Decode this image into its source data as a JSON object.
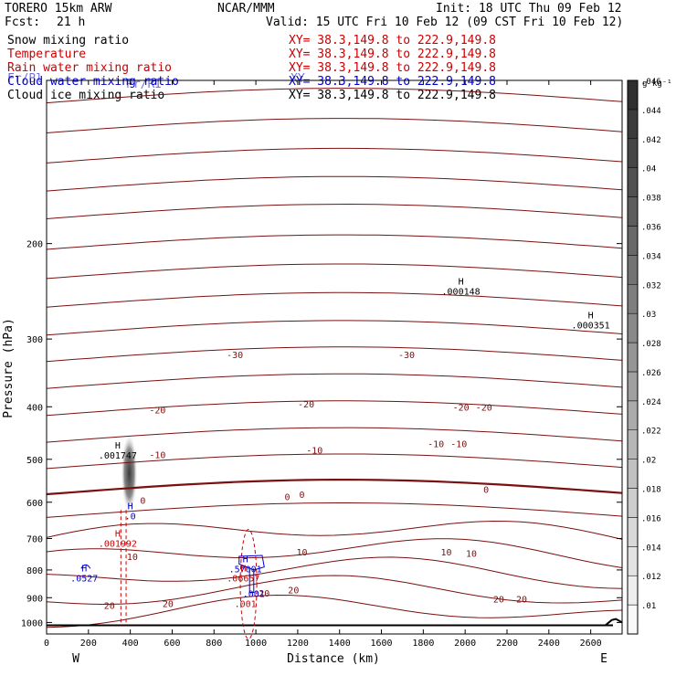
{
  "header": {
    "model": "TORERO 15km ARW",
    "agency": "NCAR/MMM",
    "init": "Init: 18 UTC Thu 09 Feb 12",
    "fcst_label": "Fcst:",
    "fcst_value": "21 h",
    "valid": "Valid: 15 UTC Fri 10 Feb 12 (09 CST Fri 10 Feb 12)",
    "overlap_ghost_a": "Fr/Bl",
    "overlap_ghost_b": "Pr/RI",
    "overlap_ghost_c": "XY"
  },
  "fields": [
    {
      "name": "Snow mixing ratio",
      "xy": "XY=  38.3,149.8 to 222.9,149.8",
      "color": "#000000",
      "xy_color": "#cc0000"
    },
    {
      "name": "Temperature",
      "xy": "XY=  38.3,149.8 to 222.9,149.8",
      "color": "#cc0000",
      "xy_color": "#cc0000"
    },
    {
      "name": "Rain water mixing ratio",
      "xy": "XY=  38.3,149.8 to 222.9,149.8",
      "color": "#cc0000",
      "xy_color": "#cc0000"
    },
    {
      "name": "Cloud water mixing ratio",
      "xy": "XY=  38.3,149.8 to 222.9,149.8",
      "color": "#0000cc",
      "xy_color": "#0000cc"
    },
    {
      "name": "Cloud ice mixing ratio",
      "xy": "XY=  38.3,149.8 to 222.9,149.8",
      "color": "#000000",
      "xy_color": "#000000"
    }
  ],
  "chart_data": {
    "type": "cross-section",
    "xlabel": "Distance (km)",
    "ylabel": "Pressure (hPa)",
    "xlim": [
      0,
      2750
    ],
    "x_ticks": [
      0,
      200,
      400,
      600,
      800,
      1000,
      1200,
      1400,
      1600,
      1800,
      2000,
      2200,
      2400,
      2600
    ],
    "y_ticks": [
      200,
      300,
      400,
      500,
      600,
      700,
      800,
      900,
      1000
    ],
    "y_scale": "log",
    "ylim": [
      1050,
      100
    ],
    "x_end_labels": {
      "left": "W",
      "right": "E"
    },
    "colorbar": {
      "units": "g kg⁻¹",
      "ticks": [
        "0.01",
        "0.012",
        "0.014",
        "0.016",
        "0.018",
        "0.02",
        "0.022",
        "0.024",
        "0.026",
        "0.028",
        "0.03",
        "0.032",
        "0.034",
        "0.036",
        "0.038",
        "0.04",
        "0.042",
        "0.044",
        "0.046"
      ],
      "ticks_shown": [
        ".01",
        ".012",
        ".014",
        ".016",
        ".018",
        ".02",
        ".022",
        ".024",
        ".026",
        ".028",
        ".03",
        ".032",
        ".034",
        ".036",
        ".038",
        ".04",
        ".042",
        ".044",
        ".046"
      ],
      "color_low": "#ffffff",
      "color_high": "#2a2a2a"
    },
    "temperature_isotherm_color": "#7a1010",
    "isotherm_labels": [
      {
        "x": 900,
        "p": 320,
        "text": "-30"
      },
      {
        "x": 1720,
        "p": 320,
        "text": "-30"
      },
      {
        "x": 530,
        "p": 405,
        "text": "-20"
      },
      {
        "x": 1240,
        "p": 395,
        "text": "-20"
      },
      {
        "x": 1980,
        "p": 400,
        "text": "-20"
      },
      {
        "x": 2090,
        "p": 400,
        "text": "-20"
      },
      {
        "x": 530,
        "p": 490,
        "text": "-10"
      },
      {
        "x": 1280,
        "p": 480,
        "text": "-10"
      },
      {
        "x": 1860,
        "p": 468,
        "text": "-10"
      },
      {
        "x": 1970,
        "p": 468,
        "text": "-10"
      },
      {
        "x": 460,
        "p": 595,
        "text": "0"
      },
      {
        "x": 1150,
        "p": 585,
        "text": "0"
      },
      {
        "x": 1220,
        "p": 580,
        "text": "0"
      },
      {
        "x": 2100,
        "p": 568,
        "text": "0"
      },
      {
        "x": 410,
        "p": 755,
        "text": "10"
      },
      {
        "x": 1220,
        "p": 740,
        "text": "10"
      },
      {
        "x": 1910,
        "p": 740,
        "text": "10"
      },
      {
        "x": 2030,
        "p": 745,
        "text": "10"
      },
      {
        "x": 300,
        "p": 930,
        "text": "20"
      },
      {
        "x": 580,
        "p": 922,
        "text": "20"
      },
      {
        "x": 1040,
        "p": 882,
        "text": "20"
      },
      {
        "x": 1180,
        "p": 870,
        "text": "20"
      },
      {
        "x": 2160,
        "p": 905,
        "text": "20"
      },
      {
        "x": 2270,
        "p": 905,
        "text": "20"
      }
    ],
    "extrema": [
      {
        "x": 1980,
        "p": 238,
        "label": "H",
        "value": ".000148",
        "color": "#000000"
      },
      {
        "x": 2600,
        "p": 275,
        "label": "H",
        "value": ".000351",
        "color": "#000000"
      },
      {
        "x": 340,
        "p": 478,
        "label": "H",
        "value": ".001747",
        "color": "#000000"
      },
      {
        "x": 400,
        "p": 618,
        "label": "H",
        "value": ".0",
        "color": "#0000cc"
      },
      {
        "x": 340,
        "p": 695,
        "label": "H",
        "value": ".001992",
        "color": "#cc0000"
      },
      {
        "x": 180,
        "p": 805,
        "label": "H",
        "value": ".0527",
        "color": "#0000cc"
      },
      {
        "x": 950,
        "p": 775,
        "label": "H",
        "value": ".57001",
        "color": "#0000cc"
      },
      {
        "x": 940,
        "p": 805,
        "label": "H",
        "value": ".06657",
        "color": "#cc0000"
      },
      {
        "x": 990,
        "p": 860,
        "label": "",
        "value": ".001",
        "color": "#0000cc"
      },
      {
        "x": 950,
        "p": 898,
        "label": "",
        "value": ".001",
        "color": "#cc0000"
      }
    ]
  }
}
